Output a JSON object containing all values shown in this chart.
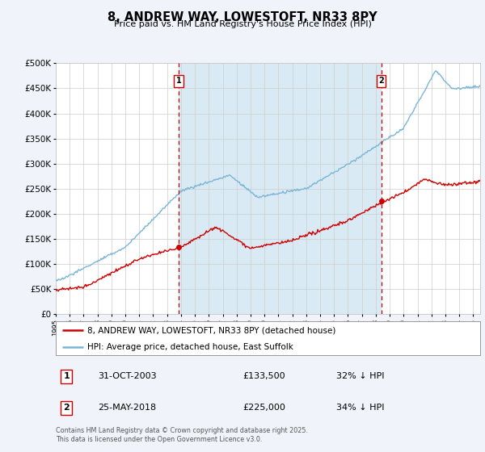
{
  "title": "8, ANDREW WAY, LOWESTOFT, NR33 8PY",
  "subtitle": "Price paid vs. HM Land Registry's House Price Index (HPI)",
  "legend_line1": "8, ANDREW WAY, LOWESTOFT, NR33 8PY (detached house)",
  "legend_line2": "HPI: Average price, detached house, East Suffolk",
  "sale1_date": "31-OCT-2003",
  "sale1_price": "£133,500",
  "sale1_hpi": "32% ↓ HPI",
  "sale2_date": "25-MAY-2018",
  "sale2_price": "£225,000",
  "sale2_hpi": "34% ↓ HPI",
  "footnote": "Contains HM Land Registry data © Crown copyright and database right 2025.\nThis data is licensed under the Open Government Licence v3.0.",
  "hpi_color": "#7ab5d8",
  "price_color": "#cc0000",
  "vline_color": "#cc0000",
  "shade_color": "#daeaf5",
  "background_color": "#f0f4fa",
  "plot_bg_color": "#ffffff",
  "sale1_x": 2003.83,
  "sale2_x": 2018.39,
  "sale1_price_val": 133500,
  "sale2_price_val": 225000,
  "ylim_max": 500000,
  "ylim_min": 0,
  "xmin": 1995,
  "xmax": 2025.5
}
